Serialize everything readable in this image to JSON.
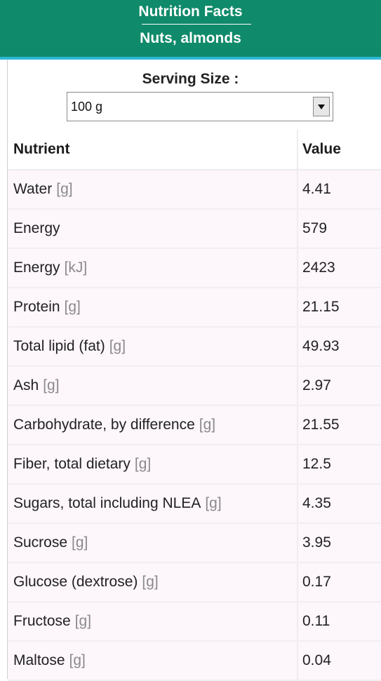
{
  "header": {
    "title": "Nutrition Facts",
    "food": "Nuts, almonds"
  },
  "serving": {
    "label": "Serving Size :",
    "selected": "100 g"
  },
  "table": {
    "col_nutrient": "Nutrient",
    "col_value": "Value",
    "rows": [
      {
        "name": "Water",
        "unit": "[g]",
        "value": "4.41"
      },
      {
        "name": "Energy",
        "unit": "",
        "value": "579"
      },
      {
        "name": "Energy",
        "unit": "[kJ]",
        "value": "2423"
      },
      {
        "name": "Protein",
        "unit": "[g]",
        "value": "21.15"
      },
      {
        "name": "Total lipid (fat)",
        "unit": "[g]",
        "value": "49.93"
      },
      {
        "name": "Ash",
        "unit": "[g]",
        "value": "2.97"
      },
      {
        "name": "Carbohydrate, by difference",
        "unit": "[g]",
        "value": "21.55"
      },
      {
        "name": "Fiber, total dietary",
        "unit": "[g]",
        "value": "12.5"
      },
      {
        "name": "Sugars, total including NLEA",
        "unit": "[g]",
        "value": "4.35"
      },
      {
        "name": "Sucrose",
        "unit": "[g]",
        "value": "3.95"
      },
      {
        "name": "Glucose (dextrose)",
        "unit": "[g]",
        "value": "0.17"
      },
      {
        "name": "Fructose",
        "unit": "[g]",
        "value": "0.11"
      },
      {
        "name": "Maltose",
        "unit": "[g]",
        "value": "0.04"
      }
    ]
  },
  "colors": {
    "header_bg": "#0f8a6a",
    "header_accent": "#2fb7d6",
    "row_bg": "#fdf6fb",
    "unit_text": "#8a8a8a"
  }
}
